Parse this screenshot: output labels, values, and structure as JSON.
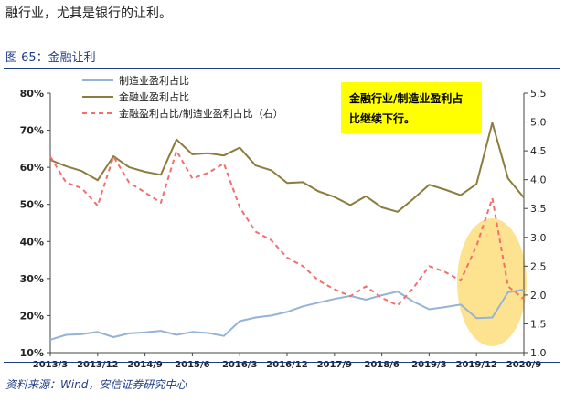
{
  "intro_text": "融行业，尤其是银行的让利。",
  "figure_title": "图 65：金融让利",
  "source_text": "资料来源：Wind，安信证券研究中心",
  "colors": {
    "manufacturing": "#95b3d7",
    "financial": "#8c7d3c",
    "ratio": "#f36e6e",
    "annotation_bg": "#ffff00",
    "highlight": "#fcd86a"
  },
  "chart_data": {
    "type": "line",
    "title": "",
    "x_tick_labels": [
      "2013/3",
      "2013/12",
      "2014/9",
      "2015/6",
      "2016/3",
      "2016/12",
      "2017/9",
      "2018/6",
      "2019/3",
      "2019/12",
      "2020/9"
    ],
    "left_axis": {
      "min": 10,
      "max": 80,
      "ticks": [
        "10%",
        "20%",
        "30%",
        "40%",
        "50%",
        "60%",
        "70%",
        "80%"
      ]
    },
    "right_axis": {
      "min": 1.0,
      "max": 5.5,
      "ticks": [
        "1.0",
        "1.5",
        "2.0",
        "2.5",
        "3.0",
        "3.5",
        "4.0",
        "4.5",
        "5.0",
        "5.5"
      ]
    },
    "series": [
      {
        "name": "制造业盈利占比",
        "axis": "left",
        "style": "solid",
        "values": [
          13.5,
          14.8,
          15.0,
          15.6,
          14.2,
          15.2,
          15.5,
          15.9,
          14.8,
          15.6,
          15.3,
          14.5,
          18.5,
          19.5,
          20.0,
          21.0,
          22.5,
          23.5,
          24.5,
          25.3,
          24.3,
          25.5,
          26.5,
          23.8,
          21.7,
          22.3,
          23.0,
          19.3,
          19.5,
          26.3,
          27.0
        ]
      },
      {
        "name": "金融业盈利占比",
        "axis": "left",
        "style": "solid",
        "values": [
          62.0,
          60.3,
          59.0,
          56.5,
          63.0,
          60.0,
          58.8,
          58.0,
          67.5,
          63.5,
          63.8,
          63.2,
          65.3,
          60.5,
          59.2,
          55.8,
          56.0,
          53.5,
          52.0,
          49.8,
          52.2,
          49.2,
          48.0,
          51.5,
          55.3,
          54.0,
          52.5,
          55.5,
          72.0,
          57.0,
          51.8
        ]
      },
      {
        "name": "金融盈利占比/制造业盈利占比（右）",
        "axis": "right",
        "style": "dashed",
        "values": [
          4.4,
          3.95,
          3.85,
          3.55,
          4.4,
          3.95,
          3.78,
          3.6,
          4.5,
          4.02,
          4.12,
          4.28,
          3.52,
          3.1,
          2.95,
          2.65,
          2.5,
          2.25,
          2.1,
          1.98,
          2.15,
          1.95,
          1.82,
          2.12,
          2.5,
          2.4,
          2.25,
          2.85,
          3.68,
          2.15,
          1.93
        ]
      }
    ],
    "legend": {
      "position": "top-left"
    },
    "annotation": {
      "text_line1": "金融行业/制造业盈利占",
      "text_line2": "比继续下行。"
    }
  }
}
